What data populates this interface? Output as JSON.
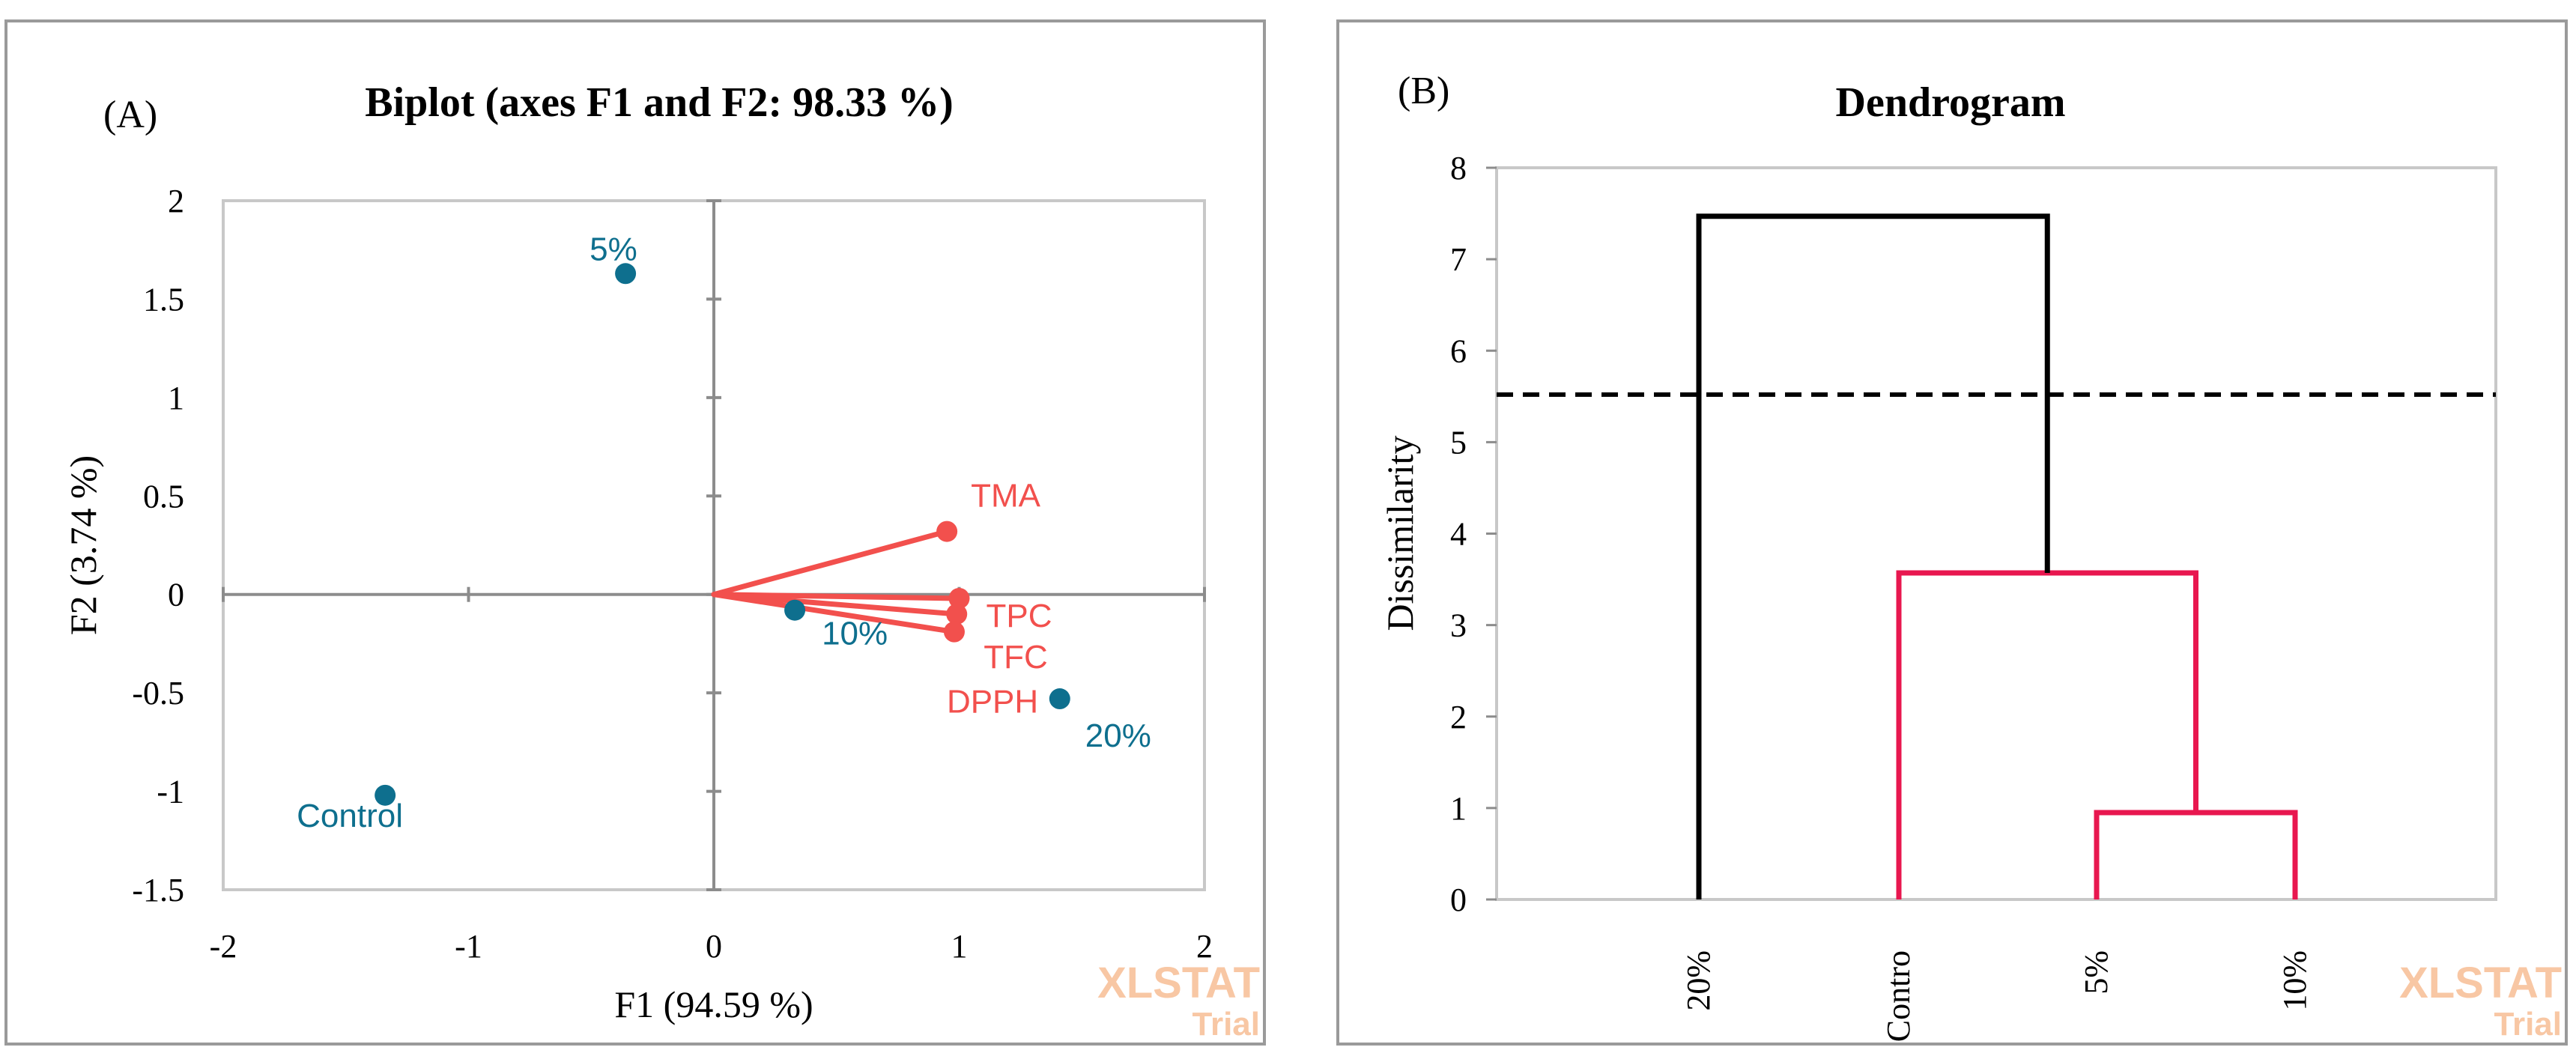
{
  "colors": {
    "frame": "#9a9a9a",
    "axis": "#8c8c8c",
    "observation": "#0e6f8e",
    "variable": "#f2504d",
    "dendro_black": "#000000",
    "dendro_red": "#e8174f",
    "watermark": "#f8c7a4"
  },
  "watermark": {
    "brand": "XLSTAT",
    "sub": "Trial"
  },
  "chart_data": [
    {
      "type": "scatter",
      "panel_label": "(A)",
      "title": "Biplot (axes F1 and F2: 98.33 %)",
      "xlabel": "F1 (94.59 %)",
      "ylabel": "F2 (3.74 %)",
      "xlim": [
        -2,
        2
      ],
      "ylim": [
        -1.5,
        2
      ],
      "x_ticks": [
        "-2",
        "-1",
        "0",
        "1",
        "2"
      ],
      "x_tick_values": [
        -2,
        -1,
        0,
        1,
        2
      ],
      "y_ticks": [
        "-1.5",
        "-1",
        "-0.5",
        "0",
        "0.5",
        "1",
        "1.5",
        "2"
      ],
      "y_tick_values": [
        -1.5,
        -1,
        -0.5,
        0,
        0.5,
        1,
        1.5,
        2
      ],
      "grid": false,
      "observations": [
        {
          "label": "5%",
          "x": -0.36,
          "y": 1.63
        },
        {
          "label": "10%",
          "x": 0.33,
          "y": -0.08
        },
        {
          "label": "20%",
          "x": 1.41,
          "y": -0.53
        },
        {
          "label": "Control",
          "x": -1.34,
          "y": -1.02
        }
      ],
      "variables": [
        {
          "label": "TMA",
          "x": 0.95,
          "y": 0.32
        },
        {
          "label": "TPC",
          "x": 1.0,
          "y": -0.02
        },
        {
          "label": "TFC",
          "x": 0.99,
          "y": -0.1
        },
        {
          "label": "DPPH",
          "x": 0.98,
          "y": -0.19
        }
      ]
    },
    {
      "type": "dendrogram",
      "panel_label": "(B)",
      "title": "Dendrogram",
      "xlabel": "",
      "ylabel": "Dissimilarity",
      "ylim": [
        0,
        8
      ],
      "y_ticks": [
        "0",
        "1",
        "2",
        "3",
        "4",
        "5",
        "6",
        "7",
        "8"
      ],
      "y_tick_values": [
        0,
        1,
        2,
        3,
        4,
        5,
        6,
        7,
        8
      ],
      "leaves": [
        "20%",
        "Contro",
        "5%",
        "10%"
      ],
      "cut_line": 5.52,
      "merges": [
        {
          "left": 2,
          "right": 3,
          "height": 0.95,
          "color": "red"
        },
        {
          "left": 1,
          "right": "m0",
          "height": 3.57,
          "color": "red"
        },
        {
          "left": 0,
          "right": "m1",
          "height": 7.47,
          "color": "black"
        }
      ]
    }
  ]
}
